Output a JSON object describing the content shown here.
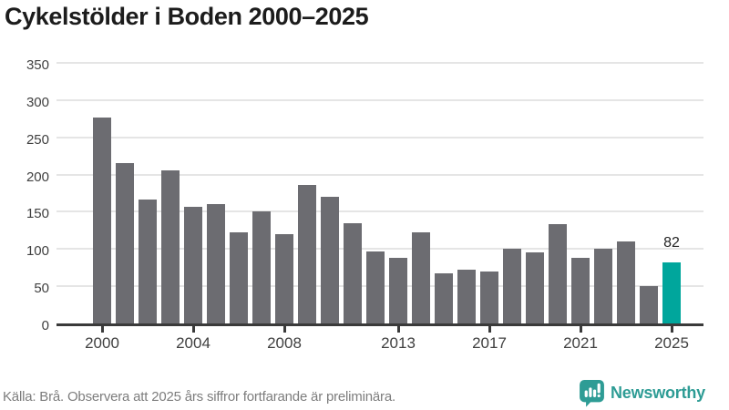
{
  "title": "Cykelstölder i Boden 2000–2025",
  "chart_data": {
    "type": "bar",
    "title": "Cykelstölder i Boden 2000–2025",
    "x": [
      2000,
      2001,
      2002,
      2003,
      2004,
      2005,
      2006,
      2007,
      2008,
      2009,
      2010,
      2011,
      2012,
      2013,
      2014,
      2015,
      2016,
      2017,
      2018,
      2019,
      2020,
      2021,
      2022,
      2023,
      2024,
      2025
    ],
    "values": [
      277,
      216,
      167,
      206,
      157,
      160,
      123,
      151,
      120,
      186,
      170,
      135,
      97,
      88,
      122,
      67,
      72,
      70,
      100,
      96,
      133,
      88,
      100,
      110,
      50,
      82
    ],
    "highlight": {
      "year": 2025,
      "value": 82,
      "label": "82"
    },
    "xlabel": "",
    "ylabel": "",
    "ylim": [
      0,
      350
    ],
    "y_ticks": [
      0,
      50,
      100,
      150,
      200,
      250,
      300,
      350
    ],
    "x_ticks": [
      2000,
      2004,
      2008,
      2013,
      2017,
      2021,
      2025
    ],
    "grid": true,
    "legend": false
  },
  "footer": {
    "source_note": "Källa: Brå. Observera att 2025 års siffror fortfarande är preliminära."
  },
  "branding": {
    "wordmark": "Newsworthy",
    "logo_icon": "newsworthy-speech-bubble-bar-chart"
  },
  "colors": {
    "background": "#ffffff",
    "bar": "#6c6c71",
    "highlight": "#00a69c",
    "grid": "#e5e5e5",
    "axis": "#3a3a3a",
    "tick_text": "#404040",
    "title_text": "#1c1c1c",
    "value_text": "#242424",
    "note_text": "#7d7d7d",
    "brand": "#2e9c95"
  }
}
